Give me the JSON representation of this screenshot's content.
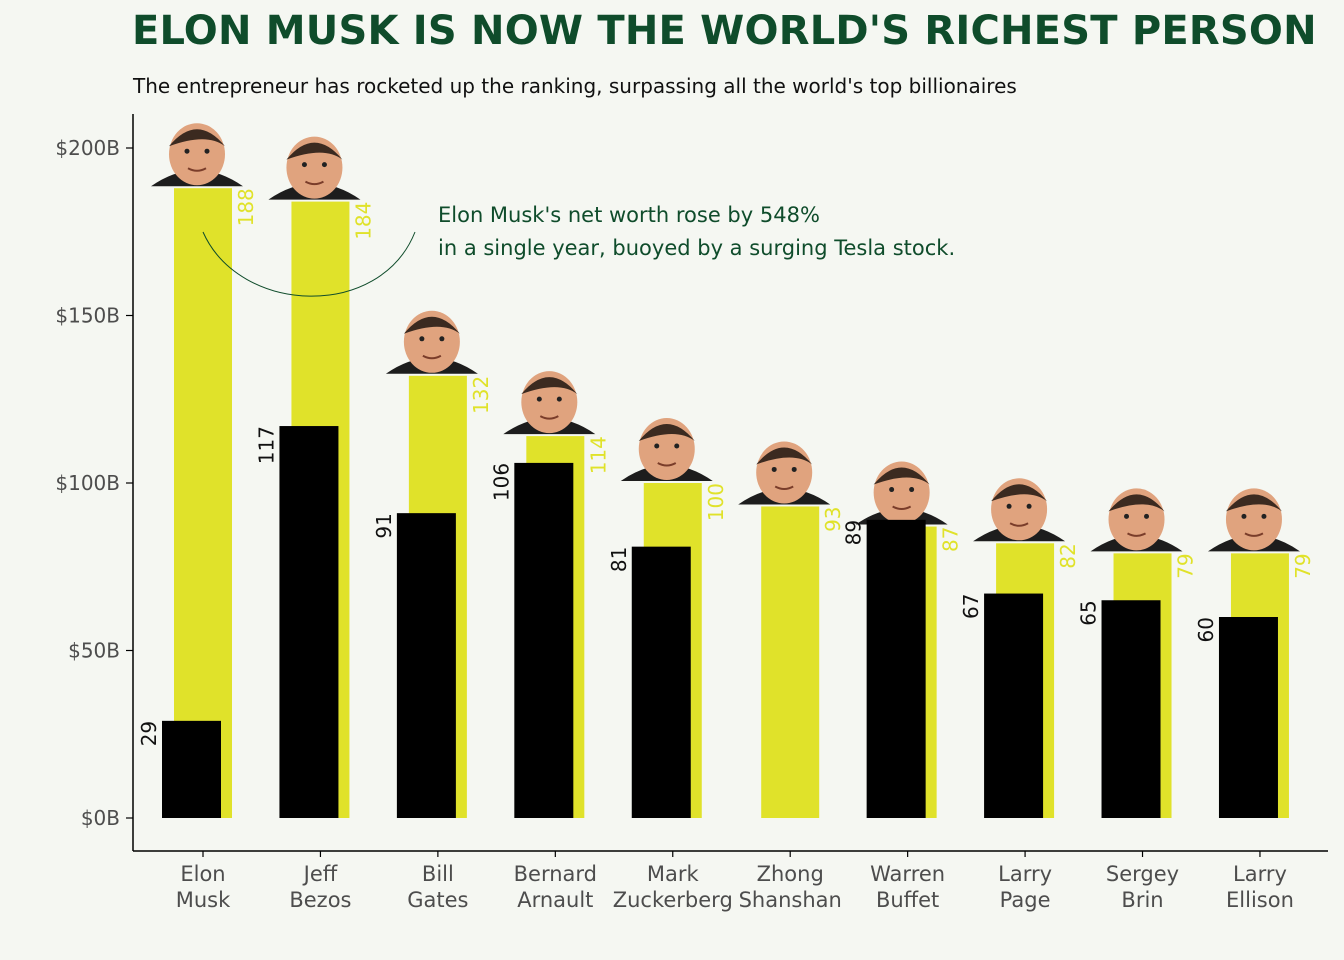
{
  "chart_data": {
    "type": "bar",
    "title": "ELON MUSK IS NOW THE WORLD'S RICHEST PERSON",
    "subtitle": "The entrepreneur has rocketed up the ranking, surpassing all the world's top billionaires",
    "categories": [
      [
        "Elon",
        "Musk"
      ],
      [
        "Jeff",
        "Bezos"
      ],
      [
        "Bill",
        "Gates"
      ],
      [
        "Bernard",
        "Arnault"
      ],
      [
        "Mark",
        "Zuckerberg"
      ],
      [
        "Zhong",
        "Shanshan"
      ],
      [
        "Warren",
        "Buffet"
      ],
      [
        "Larry",
        "Page"
      ],
      [
        "Sergey",
        "Brin"
      ],
      [
        "Larry",
        "Ellison"
      ]
    ],
    "series": [
      {
        "values": [
          188,
          184,
          132,
          114,
          100,
          93,
          87,
          82,
          79,
          79
        ],
        "color": "#e0e22a"
      },
      {
        "values": [
          29,
          117,
          91,
          106,
          81,
          null,
          89,
          67,
          65,
          60
        ],
        "color": "#000000"
      }
    ],
    "y_ticks": [
      {
        "value": 0,
        "label": "$0B"
      },
      {
        "value": 50,
        "label": "$50B"
      },
      {
        "value": 100,
        "label": "$100B"
      },
      {
        "value": 150,
        "label": "$150B"
      },
      {
        "value": 200,
        "label": "$200B"
      }
    ],
    "ylim": [
      0,
      200
    ],
    "annotation": {
      "lines": [
        "Elon Musk's net worth rose by 548%",
        "in a single year, buoyed by a surging Tesla stock."
      ]
    },
    "colors": {
      "title": "#0f4c2b",
      "annotation": "#0f4c2b",
      "axis_text": "#4d4d4d",
      "skin": "#e0a37e",
      "hair": "#3b2a20",
      "shirt": "#1d1d1d"
    }
  }
}
